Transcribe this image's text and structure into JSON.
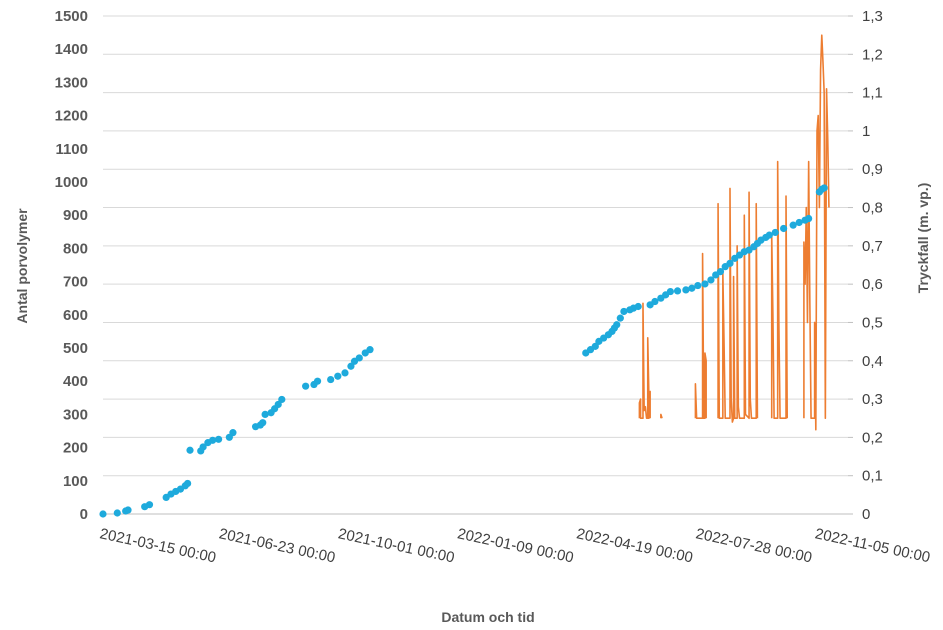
{
  "chart_data": {
    "type": "line",
    "title": "",
    "xlabel": "Datum och tid",
    "ylabel": "Antal porvolymer",
    "ylabel_right": "Tryckfall (m. vp.)",
    "grid": true,
    "legend": "none",
    "x_ticks": [
      "2021-03-15 00:00",
      "2021-06-23 00:00",
      "2021-10-01 00:00",
      "2022-01-09 00:00",
      "2022-04-19 00:00",
      "2022-07-28 00:00",
      "2022-11-05 00:00"
    ],
    "xlim": [
      "2021-03-15",
      "2022-11-30"
    ],
    "ylim_left": [
      0,
      1500
    ],
    "yticks_left": [
      "0",
      "100",
      "200",
      "300",
      "400",
      "500",
      "600",
      "700",
      "800",
      "900",
      "1000",
      "1100",
      "1200",
      "1300",
      "1400",
      "1500"
    ],
    "ylim_right": [
      0,
      1.3
    ],
    "yticks_right": [
      "0",
      "0,1",
      "0,2",
      "0,3",
      "0,4",
      "0,5",
      "0,6",
      "0,7",
      "0,8",
      "0,9",
      "1",
      "1,1",
      "1,2",
      "1,3"
    ],
    "series": [
      {
        "type": "scatter",
        "axis": "left",
        "color": "#1eaadc",
        "points": [
          [
            "2021-03-15",
            0
          ],
          [
            "2021-03-27",
            3
          ],
          [
            "2021-04-03",
            9
          ],
          [
            "2021-04-05",
            12
          ],
          [
            "2021-04-19",
            22
          ],
          [
            "2021-04-23",
            28
          ],
          [
            "2021-05-07",
            50
          ],
          [
            "2021-05-11",
            60
          ],
          [
            "2021-05-15",
            68
          ],
          [
            "2021-05-19",
            75
          ],
          [
            "2021-05-23",
            85
          ],
          [
            "2021-05-25",
            92
          ],
          [
            "2021-05-27",
            192
          ],
          [
            "2021-06-05",
            190
          ],
          [
            "2021-06-07",
            202
          ],
          [
            "2021-06-11",
            215
          ],
          [
            "2021-06-15",
            222
          ],
          [
            "2021-06-20",
            225
          ],
          [
            "2021-06-29",
            231
          ],
          [
            "2021-07-02",
            245
          ],
          [
            "2021-07-21",
            263
          ],
          [
            "2021-07-25",
            268
          ],
          [
            "2021-07-27",
            275
          ],
          [
            "2021-07-29",
            300
          ],
          [
            "2021-08-03",
            305
          ],
          [
            "2021-08-06",
            317
          ],
          [
            "2021-08-09",
            330
          ],
          [
            "2021-08-12",
            345
          ],
          [
            "2021-09-01",
            385
          ],
          [
            "2021-09-08",
            390
          ],
          [
            "2021-09-11",
            400
          ],
          [
            "2021-09-22",
            405
          ],
          [
            "2021-09-28",
            415
          ],
          [
            "2021-10-04",
            425
          ],
          [
            "2021-10-09",
            445
          ],
          [
            "2021-10-12",
            460
          ],
          [
            "2021-10-16",
            470
          ],
          [
            "2021-10-21",
            485
          ],
          [
            "2021-10-25",
            495
          ],
          [
            "2022-04-24",
            485
          ],
          [
            "2022-04-28",
            495
          ],
          [
            "2022-05-02",
            505
          ],
          [
            "2022-05-05",
            520
          ],
          [
            "2022-05-09",
            530
          ],
          [
            "2022-05-13",
            540
          ],
          [
            "2022-05-16",
            550
          ],
          [
            "2022-05-18",
            560
          ],
          [
            "2022-05-20",
            570
          ],
          [
            "2022-05-23",
            590
          ],
          [
            "2022-05-26",
            610
          ],
          [
            "2022-05-31",
            615
          ],
          [
            "2022-06-03",
            620
          ],
          [
            "2022-06-07",
            625
          ],
          [
            "2022-06-17",
            630
          ],
          [
            "2022-06-21",
            640
          ],
          [
            "2022-06-26",
            650
          ],
          [
            "2022-06-30",
            660
          ],
          [
            "2022-07-04",
            670
          ],
          [
            "2022-07-10",
            672
          ],
          [
            "2022-07-17",
            675
          ],
          [
            "2022-07-22",
            680
          ],
          [
            "2022-07-27",
            688
          ],
          [
            "2022-08-02",
            693
          ],
          [
            "2022-08-07",
            705
          ],
          [
            "2022-08-11",
            720
          ],
          [
            "2022-08-15",
            730
          ],
          [
            "2022-08-19",
            745
          ],
          [
            "2022-08-23",
            755
          ],
          [
            "2022-08-27",
            770
          ],
          [
            "2022-08-31",
            780
          ],
          [
            "2022-09-04",
            790
          ],
          [
            "2022-09-08",
            795
          ],
          [
            "2022-09-12",
            805
          ],
          [
            "2022-09-15",
            815
          ],
          [
            "2022-09-18",
            825
          ],
          [
            "2022-09-22",
            833
          ],
          [
            "2022-09-25",
            840
          ],
          [
            "2022-09-30",
            848
          ],
          [
            "2022-10-07",
            860
          ],
          [
            "2022-10-15",
            870
          ],
          [
            "2022-10-20",
            878
          ],
          [
            "2022-10-25",
            885
          ],
          [
            "2022-10-28",
            890
          ],
          [
            "2022-11-06",
            970
          ],
          [
            "2022-11-08",
            978
          ],
          [
            "2022-11-10",
            982
          ]
        ]
      },
      {
        "type": "line",
        "axis": "right",
        "color": "#ed7d31",
        "points": [
          [
            "2022-06-08",
            0.25
          ],
          [
            "2022-06-08",
            0.29
          ],
          [
            "2022-06-09",
            0.3
          ],
          [
            "2022-06-09",
            0.25
          ],
          [
            "2022-06-11",
            0.25
          ],
          [
            "2022-06-11",
            0.55
          ],
          [
            "2022-06-12",
            0.27
          ],
          [
            "2022-06-13",
            0.28
          ],
          [
            "2022-06-14",
            0.25
          ],
          [
            "2022-06-15",
            0.25
          ],
          [
            "2022-06-15",
            0.46
          ],
          [
            "2022-06-16",
            0.3
          ],
          [
            "2022-06-16",
            0.25
          ],
          [
            "2022-06-17",
            0.32
          ],
          [
            "2022-06-17",
            0.25
          ],
          [
            "2022-06-26",
            0.25
          ],
          [
            "2022-06-26",
            0.26
          ],
          [
            "2022-06-27",
            0.25
          ],
          [
            "2022-07-25",
            0.25
          ],
          [
            "2022-07-25",
            0.34
          ],
          [
            "2022-07-26",
            0.25
          ],
          [
            "2022-07-31",
            0.25
          ],
          [
            "2022-07-31",
            0.68
          ],
          [
            "2022-08-01",
            0.25
          ],
          [
            "2022-08-02",
            0.25
          ],
          [
            "2022-08-02",
            0.42
          ],
          [
            "2022-08-03",
            0.4
          ],
          [
            "2022-08-03",
            0.25
          ],
          [
            "2022-08-13",
            0.25
          ],
          [
            "2022-08-13",
            0.81
          ],
          [
            "2022-08-14",
            0.25
          ],
          [
            "2022-08-17",
            0.25
          ],
          [
            "2022-08-17",
            0.63
          ],
          [
            "2022-08-18",
            0.45
          ],
          [
            "2022-08-19",
            0.25
          ],
          [
            "2022-08-23",
            0.25
          ],
          [
            "2022-08-23",
            0.85
          ],
          [
            "2022-08-24",
            0.3
          ],
          [
            "2022-08-25",
            0.24
          ],
          [
            "2022-08-26",
            0.25
          ],
          [
            "2022-08-26",
            0.62
          ],
          [
            "2022-08-27",
            0.25
          ],
          [
            "2022-08-29",
            0.25
          ],
          [
            "2022-08-29",
            0.7
          ],
          [
            "2022-08-30",
            0.28
          ],
          [
            "2022-08-31",
            0.25
          ],
          [
            "2022-09-04",
            0.25
          ],
          [
            "2022-09-04",
            0.78
          ],
          [
            "2022-09-05",
            0.26
          ],
          [
            "2022-09-08",
            0.25
          ],
          [
            "2022-09-08",
            0.84
          ],
          [
            "2022-09-09",
            0.3
          ],
          [
            "2022-09-10",
            0.25
          ],
          [
            "2022-09-14",
            0.25
          ],
          [
            "2022-09-14",
            0.81
          ],
          [
            "2022-09-15",
            0.25
          ],
          [
            "2022-09-27",
            0.25
          ],
          [
            "2022-09-27",
            0.73
          ],
          [
            "2022-09-28",
            0.52
          ],
          [
            "2022-09-29",
            0.25
          ],
          [
            "2022-10-02",
            0.25
          ],
          [
            "2022-10-02",
            0.92
          ],
          [
            "2022-10-03",
            0.5
          ],
          [
            "2022-10-04",
            0.25
          ],
          [
            "2022-10-09",
            0.25
          ],
          [
            "2022-10-09",
            0.83
          ],
          [
            "2022-10-10",
            0.25
          ],
          [
            "2022-10-24",
            0.25
          ],
          [
            "2022-10-24",
            0.71
          ],
          [
            "2022-10-25",
            0.6
          ],
          [
            "2022-10-26",
            0.8
          ],
          [
            "2022-10-27",
            0.5
          ],
          [
            "2022-10-28",
            0.92
          ],
          [
            "2022-10-29",
            0.55
          ],
          [
            "2022-10-30",
            0.25
          ],
          [
            "2022-11-02",
            0.25
          ],
          [
            "2022-11-02",
            0.5
          ],
          [
            "2022-11-03",
            0.22
          ],
          [
            "2022-11-04",
            1.0
          ],
          [
            "2022-11-05",
            1.04
          ],
          [
            "2022-11-06",
            0.8
          ],
          [
            "2022-11-07",
            1.16
          ],
          [
            "2022-11-08",
            1.25
          ],
          [
            "2022-11-09",
            1.18
          ],
          [
            "2022-11-10",
            1.1
          ],
          [
            "2022-11-11",
            0.25
          ],
          [
            "2022-11-12",
            1.11
          ],
          [
            "2022-11-13",
            0.98
          ],
          [
            "2022-11-14",
            0.8
          ]
        ]
      }
    ]
  }
}
